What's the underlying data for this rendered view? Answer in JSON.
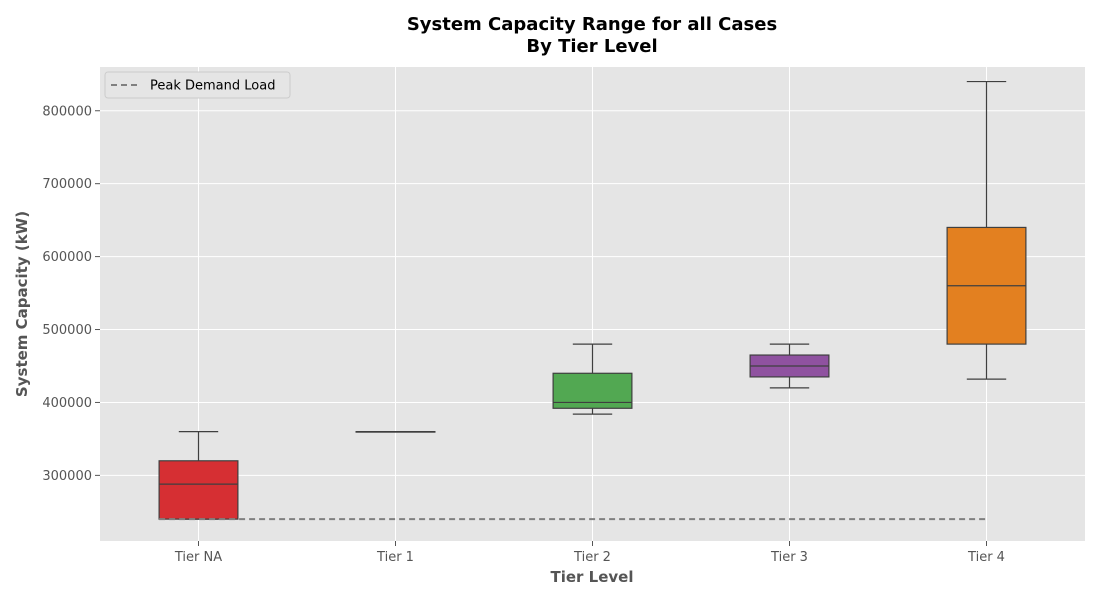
{
  "chart_data": {
    "type": "box",
    "title": "System Capacity Range for all Cases",
    "subtitle": "By Tier Level",
    "xlabel": "Tier Level",
    "ylabel": "System Capacity (kW)",
    "ylim": [
      210000,
      860000
    ],
    "yticks": [
      300000,
      400000,
      500000,
      600000,
      700000,
      800000
    ],
    "grid": true,
    "legend_position": "top-left",
    "categories": [
      "Tier NA",
      "Tier 1",
      "Tier 2",
      "Tier 3",
      "Tier 4"
    ],
    "boxes": [
      {
        "category": "Tier NA",
        "whisker_low": 240000,
        "q1": 240000,
        "median": 288000,
        "q3": 320000,
        "whisker_high": 360000,
        "color": "#d62f33"
      },
      {
        "category": "Tier 1",
        "whisker_low": 360000,
        "q1": 360000,
        "median": 360000,
        "q3": 360000,
        "whisker_high": 360000,
        "color": "#377eb8"
      },
      {
        "category": "Tier 2",
        "whisker_low": 384000,
        "q1": 392000,
        "median": 400000,
        "q3": 440000,
        "whisker_high": 480000,
        "color": "#52a852"
      },
      {
        "category": "Tier 3",
        "whisker_low": 420000,
        "q1": 435000,
        "median": 450000,
        "q3": 465000,
        "whisker_high": 480000,
        "color": "#8f52a0"
      },
      {
        "category": "Tier 4",
        "whisker_low": 432000,
        "q1": 480000,
        "median": 560000,
        "q3": 640000,
        "whisker_high": 840000,
        "color": "#e38020"
      }
    ],
    "reference_line": {
      "name": "Peak Demand Load",
      "value": 240000,
      "style": "dashed",
      "color": "#808080"
    }
  }
}
